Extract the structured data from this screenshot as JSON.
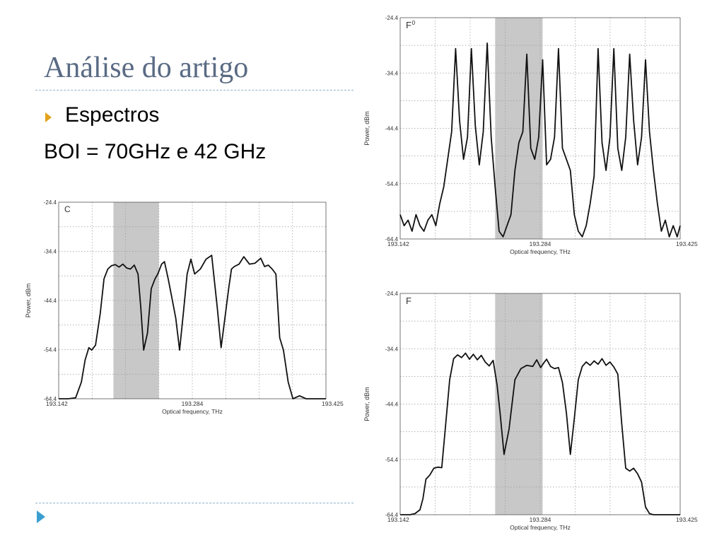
{
  "slide": {
    "title": "Análise do artigo",
    "bullet": "Espectros",
    "paragraph": "BOI =  70GHz e 42 GHz",
    "accent_color": "#e2a21c",
    "title_color": "#5a6b84",
    "nav_icon": "play-arrow-icon"
  },
  "chart_data": [
    {
      "type": "line",
      "panel_label": "C",
      "xlabel": "Optical frequency, THz",
      "ylabel": "Power, dBm",
      "xlim": [
        193.142,
        193.425
      ],
      "ylim": [
        -64.4,
        -24.4
      ],
      "xticks": [
        "193.142",
        "193.284",
        "193.425"
      ],
      "yticks": [
        "-24.4",
        "-34.4",
        "-44.4",
        "-54.4",
        "-64.4"
      ],
      "shaded_band": [
        193.2,
        193.248
      ],
      "grid": true,
      "x": [
        193.142,
        193.152,
        193.16,
        193.166,
        193.17,
        193.174,
        193.177,
        193.181,
        193.186,
        193.19,
        193.194,
        193.198,
        193.202,
        193.206,
        193.21,
        193.214,
        193.218,
        193.222,
        193.226,
        193.229,
        193.232,
        193.236,
        193.24,
        193.244,
        193.247,
        193.251,
        193.254,
        193.258,
        193.262,
        193.266,
        193.27,
        193.274,
        193.278,
        193.282,
        193.286,
        193.292,
        193.298,
        193.304,
        193.31,
        193.314,
        193.318,
        193.322,
        193.325,
        193.328,
        193.333,
        193.338,
        193.344,
        193.35,
        193.356,
        193.36,
        193.364,
        193.368,
        193.372,
        193.376,
        193.38,
        193.385,
        193.39,
        193.397,
        193.404,
        193.409,
        193.414,
        193.425
      ],
      "y": [
        -64.4,
        -64.4,
        -64.2,
        -61,
        -56.5,
        -54,
        -54.5,
        -53.5,
        -47,
        -40,
        -38,
        -37.3,
        -37.1,
        -37.6,
        -37,
        -37.8,
        -38,
        -37.2,
        -39,
        -46,
        -54.5,
        -51,
        -42,
        -40,
        -39,
        -37,
        -36.5,
        -40,
        -44,
        -48,
        -54.5,
        -47,
        -39,
        -36,
        -39,
        -38,
        -36,
        -35.2,
        -46,
        -54,
        -48,
        -42,
        -38,
        -37.5,
        -37,
        -35.5,
        -37,
        -36.8,
        -35.8,
        -37.5,
        -37.2,
        -38,
        -39,
        -52,
        -54.5,
        -61,
        -64.4,
        -63.8,
        -64.4,
        -64.4,
        -64.4,
        -64.4
      ]
    },
    {
      "type": "line",
      "panel_label": "F",
      "panel_label_sup": "0",
      "xlabel": "Optical frequency, THz",
      "ylabel": "Power, dBm",
      "xlim": [
        193.142,
        193.425
      ],
      "ylim": [
        -64.4,
        -24.4
      ],
      "xticks": [
        "193.142",
        "193.284",
        "193.425"
      ],
      "yticks": [
        "-24.4",
        "-34.4",
        "-44.4",
        "-54.4",
        "-64.4"
      ],
      "shaded_band": [
        193.238,
        193.286
      ],
      "grid": true,
      "x": [
        193.142,
        193.146,
        193.15,
        193.154,
        193.158,
        193.162,
        193.166,
        193.17,
        193.174,
        193.178,
        193.182,
        193.186,
        193.19,
        193.194,
        193.198,
        193.202,
        193.206,
        193.21,
        193.214,
        193.218,
        193.222,
        193.226,
        193.23,
        193.234,
        193.238,
        193.242,
        193.246,
        193.25,
        193.254,
        193.258,
        193.262,
        193.266,
        193.27,
        193.274,
        193.278,
        193.282,
        193.286,
        193.29,
        193.294,
        193.298,
        193.302,
        193.306,
        193.31,
        193.314,
        193.318,
        193.322,
        193.326,
        193.33,
        193.334,
        193.338,
        193.342,
        193.346,
        193.35,
        193.354,
        193.358,
        193.362,
        193.366,
        193.37,
        193.374,
        193.378,
        193.382,
        193.386,
        193.39,
        193.394,
        193.398,
        193.402,
        193.406,
        193.41,
        193.414,
        193.418,
        193.422,
        193.425
      ],
      "y": [
        -60,
        -62,
        -61,
        -63,
        -60,
        -62,
        -63,
        -61,
        -60,
        -62,
        -58,
        -55,
        -50,
        -45,
        -30,
        -43,
        -50,
        -46,
        -30,
        -44,
        -51,
        -45,
        -29,
        -46,
        -55,
        -63,
        -64,
        -62,
        -60,
        -52,
        -47,
        -45,
        -31,
        -48,
        -50,
        -46,
        -32,
        -51,
        -50,
        -46,
        -30,
        -48,
        -50,
        -52,
        -60,
        -63,
        -64,
        -62,
        -58,
        -53,
        -30,
        -47,
        -52,
        -46,
        -30,
        -48,
        -52,
        -46,
        -31,
        -43,
        -51,
        -46,
        -32,
        -45,
        -52,
        -58,
        -63,
        -61,
        -64,
        -62,
        -64,
        -62
      ]
    },
    {
      "type": "line",
      "panel_label": "F",
      "xlabel": "Optical frequency, THz",
      "ylabel": "Power, dBm",
      "xlim": [
        193.142,
        193.425
      ],
      "ylim": [
        -64.4,
        -24.4
      ],
      "xticks": [
        "193.142",
        "193.284",
        "193.425"
      ],
      "yticks": [
        "-24.4",
        "-34.4",
        "-44.4",
        "-54.4",
        "-64.4"
      ],
      "shaded_band": [
        193.238,
        193.286
      ],
      "grid": true,
      "x": [
        193.142,
        193.148,
        193.152,
        193.157,
        193.162,
        193.165,
        193.168,
        193.172,
        193.176,
        193.18,
        193.184,
        193.188,
        193.192,
        193.196,
        193.2,
        193.204,
        193.208,
        193.212,
        193.216,
        193.22,
        193.224,
        193.228,
        193.232,
        193.236,
        193.24,
        193.243,
        193.247,
        193.252,
        193.258,
        193.264,
        193.27,
        193.276,
        193.28,
        193.284,
        193.287,
        193.29,
        193.294,
        193.298,
        193.302,
        193.306,
        193.31,
        193.314,
        193.318,
        193.322,
        193.326,
        193.33,
        193.334,
        193.338,
        193.342,
        193.346,
        193.35,
        193.354,
        193.358,
        193.362,
        193.366,
        193.37,
        193.374,
        193.378,
        193.382,
        193.386,
        193.39,
        193.394,
        193.398,
        193.404,
        193.41,
        193.418,
        193.425
      ],
      "y": [
        -64.4,
        -64.4,
        -64.4,
        -64.2,
        -63.5,
        -61.5,
        -58,
        -57.2,
        -56,
        -55.8,
        -55.9,
        -48,
        -40,
        -36.2,
        -35.5,
        -36,
        -35.2,
        -36.3,
        -35.4,
        -36.4,
        -35.6,
        -36.8,
        -37.5,
        -36.5,
        -41,
        -46,
        -53.5,
        -49,
        -40,
        -38,
        -37.4,
        -37.6,
        -36.4,
        -37.8,
        -37,
        -36.3,
        -37.6,
        -38,
        -37.8,
        -40.5,
        -46,
        -53.5,
        -47,
        -40,
        -37.6,
        -36.8,
        -37.4,
        -36.6,
        -37.2,
        -36.2,
        -37.4,
        -36.8,
        -37.7,
        -39,
        -48,
        -56,
        -56.5,
        -56,
        -57,
        -58.5,
        -63,
        -64.2,
        -64.4,
        -64.4,
        -64.4,
        -64.4,
        -64.4
      ]
    }
  ]
}
